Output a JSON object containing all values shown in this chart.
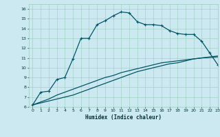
{
  "xlabel": "Humidex (Indice chaleur)",
  "bg_color": "#cce8f0",
  "grid_color": "#99ccbb",
  "line_color": "#005566",
  "xlim": [
    -0.5,
    23
  ],
  "ylim": [
    6,
    16.5
  ],
  "x_ticks": [
    0,
    1,
    2,
    3,
    4,
    5,
    6,
    7,
    8,
    9,
    10,
    11,
    12,
    13,
    14,
    15,
    16,
    17,
    18,
    19,
    20,
    21,
    22,
    23
  ],
  "y_ticks": [
    6,
    7,
    8,
    9,
    10,
    11,
    12,
    13,
    14,
    15,
    16
  ],
  "line1_x": [
    0,
    1,
    2,
    3,
    4,
    5,
    6,
    7,
    8,
    9,
    10,
    11,
    12,
    13,
    14,
    15,
    16,
    17,
    18,
    19,
    20,
    21,
    22,
    23
  ],
  "line1_y": [
    6.2,
    7.5,
    7.6,
    8.8,
    9.0,
    10.9,
    13.0,
    13.0,
    14.4,
    14.8,
    15.3,
    15.7,
    15.6,
    14.7,
    14.4,
    14.4,
    14.3,
    13.8,
    13.5,
    13.4,
    13.4,
    12.7,
    11.5,
    10.3
  ],
  "line2_x": [
    0,
    1,
    2,
    3,
    4,
    5,
    6,
    7,
    8,
    9,
    10,
    11,
    12,
    13,
    14,
    15,
    16,
    17,
    18,
    19,
    20,
    21,
    22,
    23
  ],
  "line2_y": [
    6.2,
    6.4,
    6.6,
    6.8,
    7.0,
    7.2,
    7.5,
    7.8,
    8.1,
    8.4,
    8.7,
    9.0,
    9.3,
    9.6,
    9.8,
    10.0,
    10.2,
    10.4,
    10.5,
    10.7,
    10.9,
    11.0,
    11.1,
    11.2
  ],
  "line3_x": [
    0,
    1,
    2,
    3,
    4,
    5,
    6,
    7,
    8,
    9,
    10,
    11,
    12,
    13,
    14,
    15,
    16,
    17,
    18,
    19,
    20,
    21,
    22,
    23
  ],
  "line3_y": [
    6.2,
    6.5,
    6.8,
    7.2,
    7.5,
    7.8,
    8.1,
    8.4,
    8.7,
    9.0,
    9.2,
    9.5,
    9.7,
    9.9,
    10.1,
    10.3,
    10.5,
    10.6,
    10.7,
    10.8,
    10.9,
    11.0,
    11.05,
    11.1
  ]
}
